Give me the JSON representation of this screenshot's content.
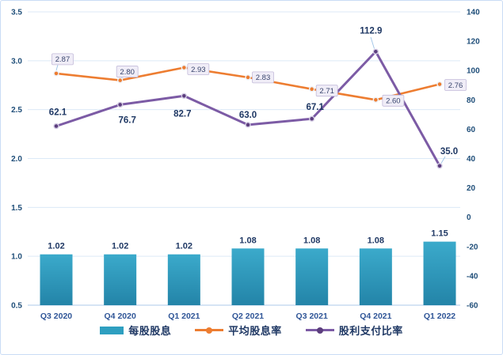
{
  "chart_data": {
    "type": "combo",
    "categories": [
      "Q3 2020",
      "Q4 2020",
      "Q1 2021",
      "Q2 2021",
      "Q3 2021",
      "Q4 2021",
      "Q1 2022"
    ],
    "series": [
      {
        "name": "每股股息",
        "type": "bar",
        "axis": "left",
        "values": [
          1.02,
          1.02,
          1.02,
          1.08,
          1.08,
          1.08,
          1.15
        ],
        "labels": [
          "1.02",
          "1.02",
          "1.02",
          "1.08",
          "1.08",
          "1.08",
          "1.15"
        ]
      },
      {
        "name": "平均股息率",
        "type": "line",
        "axis": "left",
        "values": [
          2.87,
          2.8,
          2.93,
          2.83,
          2.71,
          2.6,
          2.76
        ],
        "labels": [
          "2.87",
          "2.80",
          "2.93",
          "2.83",
          "2.71",
          "2.60",
          "2.76"
        ]
      },
      {
        "name": "股利支付比率",
        "type": "line",
        "axis": "right",
        "values": [
          62.1,
          76.7,
          82.7,
          63.0,
          67.1,
          112.9,
          35.0
        ],
        "labels": [
          "62.1",
          "76.7",
          "82.7",
          "63.0",
          "67.1",
          "112.9",
          "35.0"
        ]
      }
    ],
    "left_axis": {
      "min": 0.5,
      "max": 3.5,
      "step": 0.5,
      "ticks": [
        "3.5",
        "3.0",
        "2.5",
        "2.0",
        "1.5",
        "1.0",
        "0.5"
      ]
    },
    "right_axis": {
      "min": -60,
      "max": 140,
      "step": 20,
      "ticks": [
        "140",
        "120",
        "100",
        "80",
        "60",
        "40",
        "20",
        "0",
        "-20",
        "-40",
        "-60"
      ]
    },
    "grid": true,
    "legend_position": "bottom",
    "title": ""
  },
  "colors": {
    "bar_top": "#3BAACB",
    "bar_bottom": "#2384A8",
    "bar_legend": "#2E9FC0",
    "orange_line": "#ED7D31",
    "purple_line": "#7C5BA5",
    "purple_marker": "#5C3E7E",
    "value_label": "#1F3864",
    "axis_tick": "#1F4E79",
    "category_label": "#2F5597",
    "gridline": "#DCE9F7",
    "axis_line": "#BDD3EE",
    "leader_line": "#9DC3E6",
    "orange_box_bg": "#F0EDF7",
    "orange_box_border": "#C3BBDA",
    "orange_box_text": "#39466E",
    "frame_border": "#C9DCF5",
    "background": "#FFFFFF"
  }
}
